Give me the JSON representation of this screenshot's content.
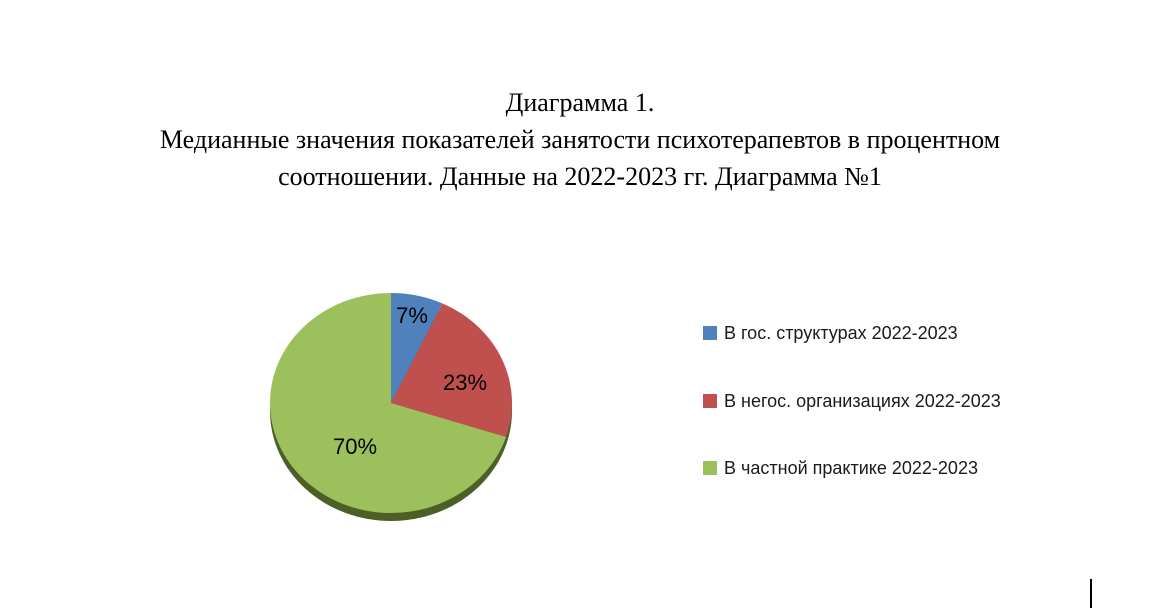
{
  "title": {
    "lines": [
      "Диаграмма 1.",
      "Медианные значения показателей занятости психотерапевтов в процентном",
      "соотношении. Данные на 2022-2023 гг. Диаграмма №1"
    ]
  },
  "chart_data": {
    "type": "pie",
    "title": "Диаграмма 1. Медианные значения показателей занятости психотерапевтов в процентном соотношении. Данные на 2022-2023 гг. Диаграмма №1",
    "categories": [
      "В гос. структурах 2022-2023",
      "В негос. организациях 2022-2023",
      "В частной практике 2022-2023"
    ],
    "values": [
      7,
      23,
      70
    ],
    "labels": [
      "7%",
      "23%",
      "70%"
    ],
    "colors": [
      "#4F81BD",
      "#C0504D",
      "#9CC15C"
    ],
    "shadow_color": "#4D5F27",
    "start_angle_deg": 0,
    "direction": "clockwise",
    "legend_position": "right",
    "effect": "3d-bottom-shadow"
  }
}
